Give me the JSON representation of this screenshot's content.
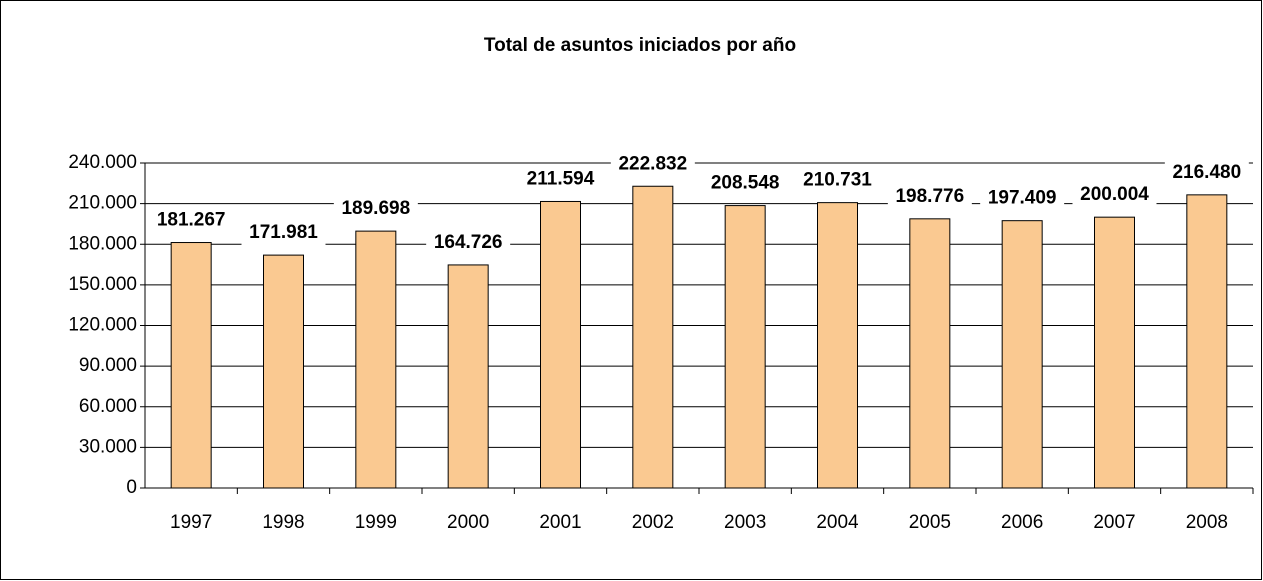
{
  "chart_data": {
    "type": "bar",
    "title": "Total de asuntos iniciados por año",
    "categories": [
      "1997",
      "1998",
      "1999",
      "2000",
      "2001",
      "2002",
      "2003",
      "2004",
      "2005",
      "2006",
      "2007",
      "2008"
    ],
    "values": [
      181267,
      171981,
      189698,
      164726,
      211594,
      222832,
      208548,
      210731,
      198776,
      197409,
      200004,
      216480
    ],
    "value_labels": [
      "181.267",
      "171.981",
      "189.698",
      "164.726",
      "211.594",
      "222.832",
      "208.548",
      "210.731",
      "198.776",
      "197.409",
      "200.004",
      "216.480"
    ],
    "color": "#fac991",
    "ylim": [
      0,
      240000
    ],
    "yticks": [
      0,
      {
        "value": 30000,
        "label": "30.000"
      },
      {
        "value": 60000,
        "label": "60.000"
      },
      {
        "value": 90000,
        "label": "90.000"
      },
      {
        "value": 120000,
        "label": "120.000"
      },
      {
        "value": 150000,
        "label": "150.000"
      },
      {
        "value": 180000,
        "label": "180.000"
      },
      {
        "value": 210000,
        "label": "210.000"
      },
      {
        "value": 240000,
        "label": "240.000"
      }
    ],
    "grid": true
  }
}
